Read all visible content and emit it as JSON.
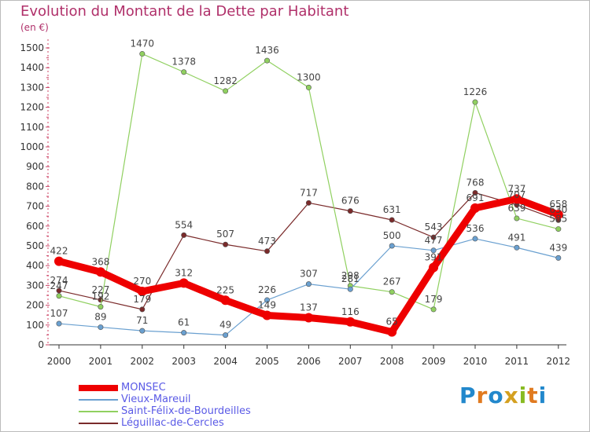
{
  "chart_data": {
    "type": "line",
    "title": "Evolution du Montant de la Dette par Habitant",
    "unit": "(en €)",
    "categories": [
      "2000",
      "2001",
      "2002",
      "2003",
      "2004",
      "2005",
      "2006",
      "2007",
      "2008",
      "2009",
      "2010",
      "2011",
      "2012"
    ],
    "ylim": [
      0,
      1500
    ],
    "yticks": [
      "0",
      "100",
      "200",
      "300",
      "400",
      "500",
      "600",
      "700",
      "800",
      "900",
      "1000",
      "1100",
      "1200",
      "1300",
      "1400",
      "1500"
    ],
    "grid": false,
    "legend_position": "bottom-left",
    "series": [
      {
        "name": "MONSEC",
        "color": "#ee0000",
        "values": [
          422,
          368,
          270,
          312,
          225,
          149,
          137,
          116,
          65,
          391,
          691,
          737,
          658
        ],
        "labels": [
          "422",
          "368",
          "270",
          "312",
          "225",
          "149",
          "137",
          "116",
          "65",
          "391",
          "691",
          "737",
          "658"
        ]
      },
      {
        "name": "Vieux-Mareuil",
        "color": "#6aa0d0",
        "values": [
          107,
          89,
          71,
          61,
          49,
          226,
          307,
          281,
          500,
          477,
          536,
          491,
          439
        ],
        "labels": [
          "107",
          "89",
          "71",
          "61",
          "49",
          "226",
          "307",
          "281",
          "500",
          "477",
          "536",
          "491",
          "439"
        ]
      },
      {
        "name": "Saint-Félix-de-Bourdeilles",
        "color": "#90d060",
        "values": [
          247,
          192,
          1470,
          1378,
          1282,
          1436,
          1300,
          298,
          267,
          179,
          1226,
          639,
          585
        ],
        "labels": [
          "247",
          "192",
          "1470",
          "1378",
          "1282",
          "1436",
          "1300",
          "298",
          "267",
          "179",
          "1226",
          "639",
          "585"
        ]
      },
      {
        "name": "Léguillac-de-Cercles",
        "color": "#7a2a2a",
        "values": [
          274,
          227,
          179,
          554,
          507,
          473,
          717,
          676,
          631,
          543,
          768,
          707,
          630
        ],
        "labels": [
          "274",
          "227",
          "179",
          "554",
          "507",
          "473",
          "717",
          "676",
          "631",
          "543",
          "768",
          "707",
          "630"
        ]
      }
    ]
  },
  "logo": {
    "text": "Proxiti",
    "colors": [
      "#2288cc",
      "#e07a20",
      "#2288cc",
      "#d4a020",
      "#88bb22",
      "#e07a20",
      "#2288cc"
    ]
  }
}
